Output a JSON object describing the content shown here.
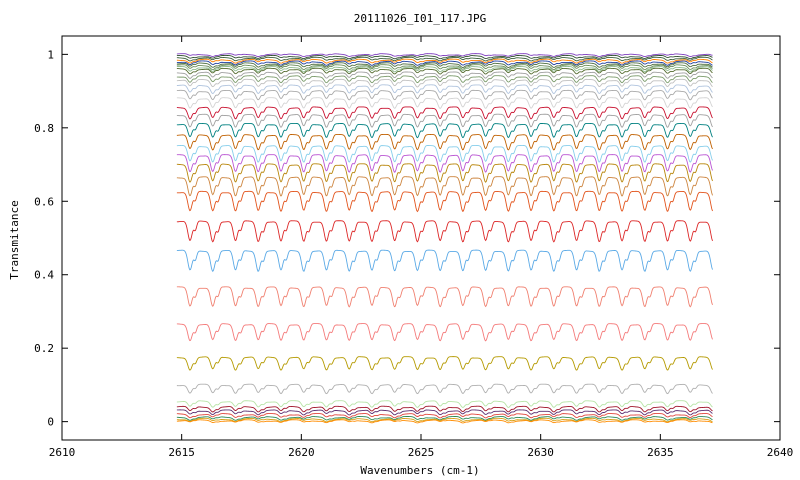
{
  "chart_data": {
    "type": "line",
    "title": "20111026_I01_117.JPG",
    "xlabel": "Wavenumbers (cm-1)",
    "ylabel": "Transmitance",
    "xlim": [
      2610,
      2640
    ],
    "ylim": [
      -0.05,
      1.05
    ],
    "xticks": [
      "2610",
      "2615",
      "2620",
      "2625",
      "2630",
      "2635",
      "2640"
    ],
    "yticks": [
      "0",
      "0.2",
      "0.4",
      "0.6",
      "0.8",
      "1"
    ],
    "grid": false,
    "legend": "none",
    "x_range_of_data": [
      2614.8,
      2637.2
    ],
    "absorption_line_spacing": 0.95,
    "series": [
      {
        "baseline": 1.0,
        "color": "#7f3fbf"
      },
      {
        "baseline": 0.995,
        "color": "#2f4f2f"
      },
      {
        "baseline": 0.99,
        "color": "#3a5f3a"
      },
      {
        "baseline": 0.985,
        "color": "#ff7f00"
      },
      {
        "baseline": 0.98,
        "color": "#1f3f9f"
      },
      {
        "baseline": 0.975,
        "color": "#4f6f3f"
      },
      {
        "baseline": 0.97,
        "color": "#6b8e5b"
      },
      {
        "baseline": 0.965,
        "color": "#8fbc8f"
      },
      {
        "baseline": 0.96,
        "color": "#556b2f"
      },
      {
        "baseline": 0.95,
        "color": "#a0a0a0"
      },
      {
        "baseline": 0.94,
        "color": "#7b9b6b"
      },
      {
        "baseline": 0.93,
        "color": "#c0c0c0"
      },
      {
        "baseline": 0.915,
        "color": "#b0c4de"
      },
      {
        "baseline": 0.9,
        "color": "#a9a9a9"
      },
      {
        "baseline": 0.88,
        "color": "#d3d3d3"
      },
      {
        "baseline": 0.855,
        "color": "#c8102e"
      },
      {
        "baseline": 0.835,
        "color": "#a0a0a0"
      },
      {
        "baseline": 0.81,
        "color": "#008080"
      },
      {
        "baseline": 0.78,
        "color": "#c06000"
      },
      {
        "baseline": 0.75,
        "color": "#87ceeb"
      },
      {
        "baseline": 0.725,
        "color": "#ba55d3"
      },
      {
        "baseline": 0.7,
        "color": "#b8860b"
      },
      {
        "baseline": 0.665,
        "color": "#cd853f"
      },
      {
        "baseline": 0.625,
        "color": "#e2531b"
      },
      {
        "baseline": 0.545,
        "color": "#dc2626"
      },
      {
        "baseline": 0.465,
        "color": "#5aa9e6"
      },
      {
        "baseline": 0.365,
        "color": "#f08070"
      },
      {
        "baseline": 0.265,
        "color": "#f47a7a"
      },
      {
        "baseline": 0.175,
        "color": "#b59a00"
      },
      {
        "baseline": 0.1,
        "color": "#b0b0b0"
      },
      {
        "baseline": 0.055,
        "color": "#b7e4a7"
      },
      {
        "baseline": 0.04,
        "color": "#a0142a"
      },
      {
        "baseline": 0.03,
        "color": "#5b2c6f"
      },
      {
        "baseline": 0.02,
        "color": "#e0463b"
      },
      {
        "baseline": 0.012,
        "color": "#2e8b57"
      },
      {
        "baseline": 0.007,
        "color": "#d4a017"
      },
      {
        "baseline": 0.003,
        "color": "#ff8c00"
      }
    ]
  }
}
